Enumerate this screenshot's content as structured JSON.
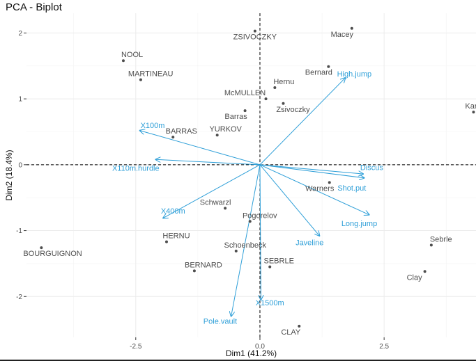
{
  "chart_data": {
    "type": "scatter",
    "title": "PCA - Biplot",
    "xlabel": "Dim1 (41.2%)",
    "ylabel": "Dim2 (18.4%)",
    "xlim": [
      -4.7,
      4.35
    ],
    "ylim": [
      -2.62,
      2.3
    ],
    "xticks": [
      -2.5,
      0.0,
      2.5
    ],
    "xtick_labels": [
      "-2.5",
      "0.0",
      "2.5"
    ],
    "yticks": [
      -2,
      -1,
      0,
      1,
      2
    ],
    "ytick_labels": [
      "-2",
      "-1",
      "0",
      "1",
      "2"
    ],
    "grid": true,
    "colors": {
      "individuals": "#4d4d4d",
      "variables": "#2e9fd8",
      "grid": "#ebebeb",
      "axis_ref": "#000000"
    },
    "individuals": [
      {
        "name": "ZSIVOCZKY",
        "x": -0.1,
        "y": 2.03,
        "label_dx": 0,
        "label_dy": 1
      },
      {
        "name": "Macey",
        "x": 1.85,
        "y": 2.07,
        "label_dx": 0,
        "label_dy": 1
      },
      {
        "name": "NOOL",
        "x": -2.75,
        "y": 1.58,
        "label_dx": 1,
        "label_dy": -1
      },
      {
        "name": "MARTINEAU",
        "x": -2.4,
        "y": 1.29,
        "label_dx": 1,
        "label_dy": -1
      },
      {
        "name": "Bernard",
        "x": 1.38,
        "y": 1.49,
        "label_dx": -1,
        "label_dy": 1
      },
      {
        "name": "Hernu",
        "x": 0.3,
        "y": 1.17,
        "label_dx": 1,
        "label_dy": -1
      },
      {
        "name": "McMULLEN",
        "x": 0.12,
        "y": 1.0,
        "label_dx": -1,
        "label_dy": -1
      },
      {
        "name": "Zsivoczky",
        "x": 0.47,
        "y": 0.93,
        "label_dx": 1,
        "label_dy": 1
      },
      {
        "name": "Barras",
        "x": -0.3,
        "y": 0.82,
        "label_dx": -1,
        "label_dy": 1
      },
      {
        "name": "YURKOV",
        "x": -0.86,
        "y": 0.45,
        "label_dx": 1,
        "label_dy": -1
      },
      {
        "name": "BARRAS",
        "x": -1.75,
        "y": 0.42,
        "label_dx": 1,
        "label_dy": -1
      },
      {
        "name": "Karpov",
        "x": 4.3,
        "y": 0.8,
        "label_dx": 1,
        "label_dy": -1
      },
      {
        "name": "Warners",
        "x": 1.4,
        "y": -0.27,
        "label_dx": -1,
        "label_dy": 1
      },
      {
        "name": "Schwarzl",
        "x": -0.7,
        "y": -0.66,
        "label_dx": -1,
        "label_dy": -1
      },
      {
        "name": "Pogorelov",
        "x": -0.2,
        "y": -0.86,
        "label_dx": 1,
        "label_dy": -1
      },
      {
        "name": "HERNU",
        "x": -1.88,
        "y": -1.17,
        "label_dx": 1,
        "label_dy": -1
      },
      {
        "name": "Schoenbeck",
        "x": -0.48,
        "y": -1.31,
        "label_dx": 1,
        "label_dy": -1
      },
      {
        "name": "BOURGUIGNON",
        "x": -4.4,
        "y": -1.26,
        "label_dx": 1,
        "label_dy": 1
      },
      {
        "name": "SEBRLE",
        "x": 0.2,
        "y": -1.55,
        "label_dx": 1,
        "label_dy": -1
      },
      {
        "name": "BERNARD",
        "x": -1.32,
        "y": -1.61,
        "label_dx": 1,
        "label_dy": -1
      },
      {
        "name": "Sebrle",
        "x": 3.45,
        "y": -1.22,
        "label_dx": 1,
        "label_dy": -1
      },
      {
        "name": "Clay",
        "x": 3.32,
        "y": -1.62,
        "label_dx": -1,
        "label_dy": 1
      },
      {
        "name": "CLAY",
        "x": 0.79,
        "y": -2.45,
        "label_dx": -1,
        "label_dy": 1
      }
    ],
    "variables": [
      {
        "name": "High.jump",
        "x": 1.72,
        "y": 1.32
      },
      {
        "name": "X100m",
        "x": -2.42,
        "y": 0.52
      },
      {
        "name": "X110m.hurdle",
        "x": -2.1,
        "y": 0.08
      },
      {
        "name": "Discus",
        "x": 2.08,
        "y": -0.14
      },
      {
        "name": "Shot.put",
        "x": 2.1,
        "y": -0.2
      },
      {
        "name": "Long.jump",
        "x": 2.2,
        "y": -0.76
      },
      {
        "name": "X400m",
        "x": -1.95,
        "y": -0.81
      },
      {
        "name": "Javeline",
        "x": 1.2,
        "y": -1.08
      },
      {
        "name": "X1500m",
        "x": 0.02,
        "y": -2.05
      },
      {
        "name": "Pole.vault",
        "x": -0.58,
        "y": -2.3
      }
    ],
    "variable_labels": [
      {
        "name": "High.jump",
        "x": 1.9,
        "y": 1.38
      },
      {
        "name": "X100m",
        "x": -2.16,
        "y": 0.6
      },
      {
        "name": "X110m.hurdle",
        "x": -2.5,
        "y": -0.05
      },
      {
        "name": "Discus",
        "x": 2.25,
        "y": -0.04
      },
      {
        "name": "Shot.put",
        "x": 1.85,
        "y": -0.35
      },
      {
        "name": "Long.jump",
        "x": 2.0,
        "y": -0.89
      },
      {
        "name": "X400m",
        "x": -1.75,
        "y": -0.7
      },
      {
        "name": "Javeline",
        "x": 1.0,
        "y": -1.18
      },
      {
        "name": "X1500m",
        "x": 0.2,
        "y": -2.09
      },
      {
        "name": "Pole.vault",
        "x": -0.8,
        "y": -2.37
      }
    ]
  }
}
